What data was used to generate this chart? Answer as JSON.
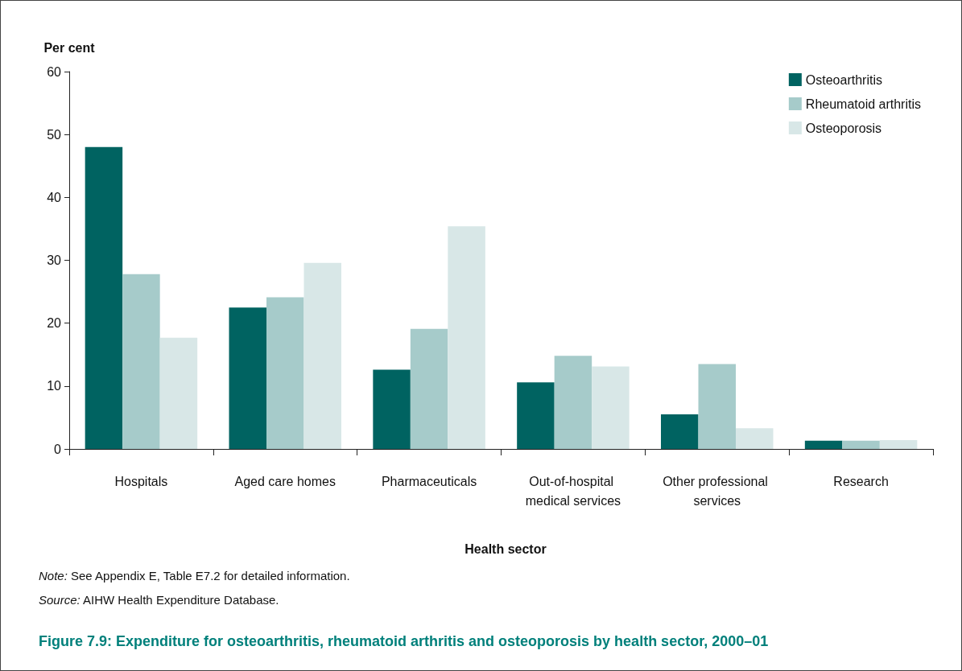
{
  "chart_data": {
    "type": "bar",
    "title": "Figure 7.9: Expenditure for osteoarthritis, rheumatoid arthritis and osteoporosis by health sector, 2000–01",
    "xlabel": "Health sector",
    "ylabel": "Per cent",
    "annotations": [
      "Note: See Appendix E, Table E7.2 for detailed information.",
      "Source: AIHW Health Expenditure Database."
    ],
    "categories": [
      "Hospitals",
      "Aged care homes",
      "Pharmaceuticals",
      "Out-of-hospital medical services",
      "Other professional services",
      "Research"
    ],
    "series": [
      {
        "name": "Osteoarthritis",
        "color": "#006361",
        "values": [
          48.0,
          22.5,
          12.6,
          10.6,
          5.5,
          1.3
        ]
      },
      {
        "name": "Rheumatoid arthritis",
        "color": "#a6cbca",
        "values": [
          27.8,
          24.1,
          19.1,
          14.8,
          13.5,
          1.3
        ]
      },
      {
        "name": "Osteoporosis",
        "color": "#d8e7e7",
        "values": [
          17.7,
          29.6,
          35.4,
          13.1,
          3.3,
          1.4
        ]
      }
    ],
    "ylim": [
      0,
      60
    ],
    "yticks": [
      0,
      10,
      20,
      30,
      40,
      50,
      60
    ],
    "grid": false,
    "legend": "top right"
  }
}
